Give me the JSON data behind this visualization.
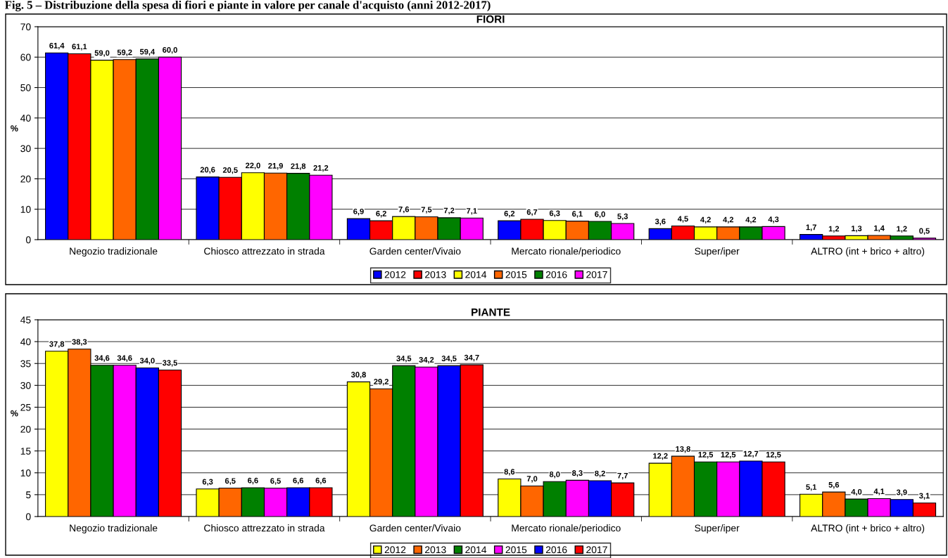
{
  "chart_data": [
    {
      "type": "bar",
      "title": "FIORI",
      "ylabel": "%",
      "annotations": [
        "Fig. 5 – Distribuzione della spesa di fiori e piante in valore per canale d'acquisto (anni 2012-2017)"
      ],
      "categories": [
        "Negozio tradizionale",
        "Chiosco attrezzato in strada",
        "Garden center/Vivaio",
        "Mercato rionale/periodico",
        "Super/iper",
        "ALTRO (int + brico + altro)"
      ],
      "series": [
        {
          "name": "2012",
          "color": "#0000ff",
          "values": [
            61.4,
            20.6,
            6.9,
            6.2,
            3.6,
            1.7
          ],
          "value_labels": [
            "61,4",
            "20,6",
            "6,9",
            "6,2",
            "3,6",
            "1,7"
          ]
        },
        {
          "name": "2013",
          "color": "#ff0000",
          "values": [
            61.1,
            20.5,
            6.2,
            6.7,
            4.5,
            1.2
          ],
          "value_labels": [
            "61,1",
            "20,5",
            "6,2",
            "6,7",
            "4,5",
            "1,2"
          ]
        },
        {
          "name": "2014",
          "color": "#ffff00",
          "values": [
            59.0,
            22.0,
            7.6,
            6.3,
            4.2,
            1.3
          ],
          "value_labels": [
            "59,0",
            "22,0",
            "7,6",
            "6,3",
            "4,2",
            "1,3"
          ]
        },
        {
          "name": "2015",
          "color": "#ff6600",
          "values": [
            59.2,
            21.9,
            7.5,
            6.1,
            4.2,
            1.4
          ],
          "value_labels": [
            "59,2",
            "21,9",
            "7,5",
            "6,1",
            "4,2",
            "1,4"
          ]
        },
        {
          "name": "2016",
          "color": "#008000",
          "values": [
            59.4,
            21.8,
            7.2,
            6.0,
            4.2,
            1.2
          ],
          "value_labels": [
            "59,4",
            "21,8",
            "7,2",
            "6,0",
            "4,2",
            "1,2"
          ]
        },
        {
          "name": "2017",
          "color": "#ff00ff",
          "values": [
            60.0,
            21.2,
            7.1,
            5.3,
            4.3,
            0.5
          ],
          "value_labels": [
            "60,0",
            "21,2",
            "7,1",
            "5,3",
            "4,3",
            "0,5"
          ]
        }
      ],
      "ylim": [
        0,
        70
      ],
      "yticks": [
        0,
        10,
        20,
        30,
        40,
        50,
        60,
        70
      ],
      "grid": "y",
      "legend": "bottom"
    },
    {
      "type": "bar",
      "title": "PIANTE",
      "ylabel": "%",
      "categories": [
        "Negozio tradizionale",
        "Chiosco attrezzato in strada",
        "Garden center/Vivaio",
        "Mercato rionale/periodico",
        "Super/iper",
        "ALTRO (int + brico + altro)"
      ],
      "series": [
        {
          "name": "2012",
          "color": "#ffff00",
          "values": [
            37.8,
            6.3,
            30.8,
            8.6,
            12.2,
            5.1
          ],
          "value_labels": [
            "37,8",
            "6,3",
            "30,8",
            "8,6",
            "12,2",
            "5,1"
          ]
        },
        {
          "name": "2013",
          "color": "#ff6600",
          "values": [
            38.3,
            6.5,
            29.2,
            7.0,
            13.8,
            5.6
          ],
          "value_labels": [
            "38,3",
            "6,5",
            "29,2",
            "7,0",
            "13,8",
            "5,6"
          ]
        },
        {
          "name": "2014",
          "color": "#008000",
          "values": [
            34.6,
            6.6,
            34.5,
            8.0,
            12.5,
            4.0
          ],
          "value_labels": [
            "34,6",
            "6,6",
            "34,5",
            "8,0",
            "12,5",
            "4,0"
          ]
        },
        {
          "name": "2015",
          "color": "#ff00ff",
          "values": [
            34.6,
            6.5,
            34.2,
            8.3,
            12.5,
            4.1
          ],
          "value_labels": [
            "34,6",
            "6,5",
            "34,2",
            "8,3",
            "12,5",
            "4,1"
          ]
        },
        {
          "name": "2016",
          "color": "#0000ff",
          "values": [
            34.0,
            6.6,
            34.5,
            8.2,
            12.7,
            3.9
          ],
          "value_labels": [
            "34,0",
            "6,6",
            "34,5",
            "8,2",
            "12,7",
            "3,9"
          ]
        },
        {
          "name": "2017",
          "color": "#ff0000",
          "values": [
            33.5,
            6.6,
            34.7,
            7.7,
            12.5,
            3.1
          ],
          "value_labels": [
            "33,5",
            "6,6",
            "34,7",
            "7,7",
            "12,5",
            "3,1"
          ]
        }
      ],
      "ylim": [
        0,
        45
      ],
      "yticks": [
        0,
        5,
        10,
        15,
        20,
        25,
        30,
        35,
        40,
        45
      ],
      "grid": "y",
      "legend": "bottom"
    }
  ]
}
